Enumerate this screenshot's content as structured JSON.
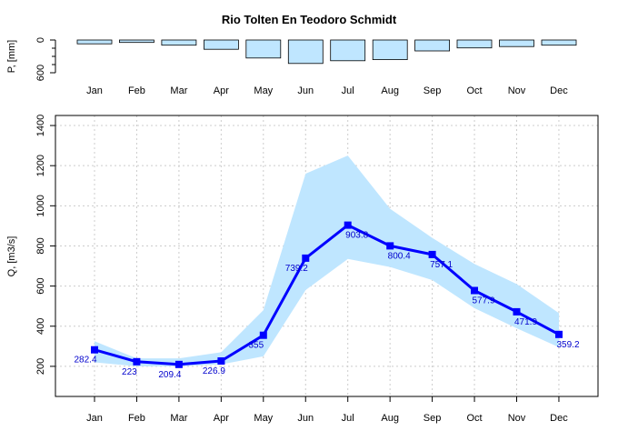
{
  "chart_data": [
    {
      "type": "bar",
      "title": "Rio Tolten En Teodoro Schmidt",
      "ylabel": "P, [mm]",
      "y_axis_direction": "inverted",
      "ylim": [
        0,
        600
      ],
      "yticks": [
        "0",
        "600"
      ],
      "categories": [
        "Jan",
        "Feb",
        "Mar",
        "Apr",
        "May",
        "Jun",
        "Jul",
        "Aug",
        "Sep",
        "Oct",
        "Nov",
        "Dec"
      ],
      "values": [
        70,
        45,
        95,
        170,
        330,
        430,
        380,
        360,
        200,
        145,
        120,
        95
      ],
      "colors": {
        "fill": "#bfe6ff",
        "stroke": "#000000"
      }
    },
    {
      "type": "line",
      "ylabel": "Q, [m3/s]",
      "ylim": [
        50,
        1450
      ],
      "yticks": [
        "200",
        "400",
        "600",
        "800",
        "1000",
        "1200",
        "1400"
      ],
      "grid": true,
      "categories": [
        "Jan",
        "Feb",
        "Mar",
        "Apr",
        "May",
        "Jun",
        "Jul",
        "Aug",
        "Sep",
        "Oct",
        "Nov",
        "Dec"
      ],
      "values": [
        282.4,
        223,
        209.4,
        226.9,
        355,
        739.2,
        903.8,
        800.4,
        757.1,
        577.9,
        471.9,
        359.2
      ],
      "labels": [
        "282.4",
        "223",
        "209.4",
        "226.9",
        "355",
        "739.2",
        "903.8",
        "800.4",
        "757.1",
        "577.9",
        "471.9",
        "359.2"
      ],
      "band_upper": [
        325,
        240,
        240,
        270,
        480,
        1160,
        1250,
        985,
        840,
        710,
        610,
        465
      ],
      "band_lower": [
        220,
        200,
        200,
        210,
        250,
        580,
        735,
        695,
        630,
        490,
        390,
        295
      ],
      "colors": {
        "line": "#0000ff",
        "band": "#bfe6ff",
        "label": "#0000cd",
        "grid": "#cccccc"
      }
    }
  ]
}
